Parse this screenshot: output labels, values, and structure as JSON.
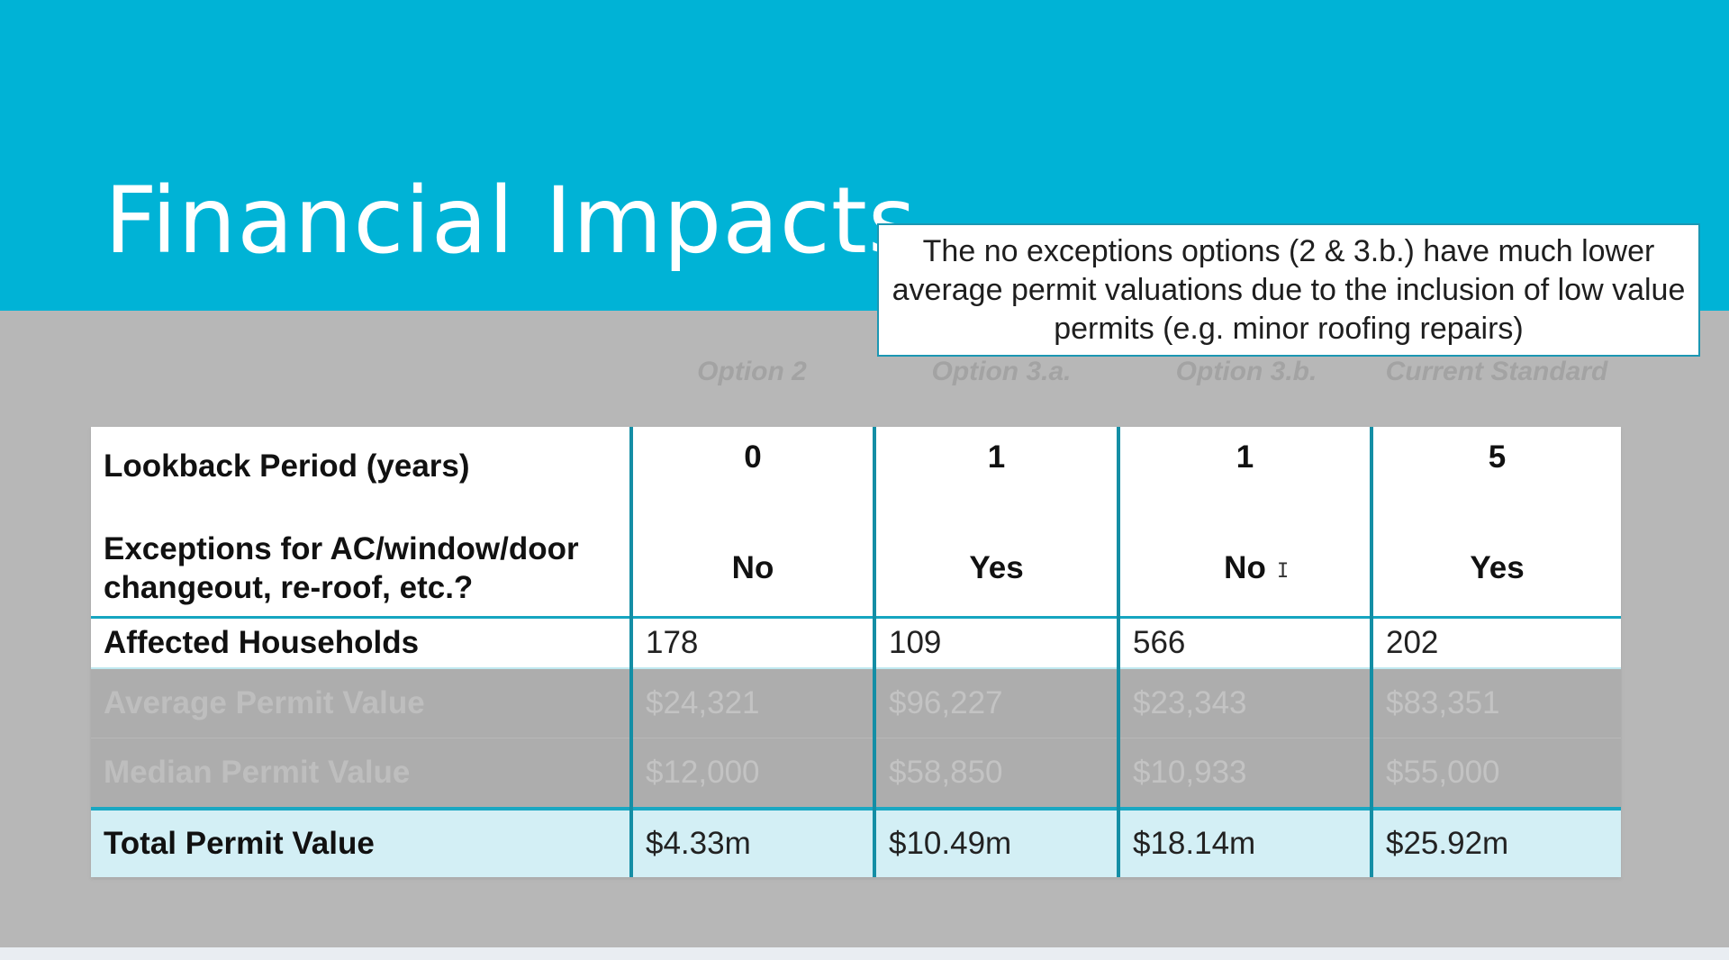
{
  "slide": {
    "title": "Financial Impacts",
    "callout": "The no exceptions options (2 & 3.b.) have much lower average permit valuations due to the inclusion of low value permits (e.g. minor roofing repairs)"
  },
  "options": [
    "Option 2",
    "Option 3.a.",
    "Option 3.b.",
    "Current Standard"
  ],
  "table": {
    "lookback": {
      "label": "Lookback Period (years)",
      "values": [
        "0",
        "1",
        "1",
        "5"
      ]
    },
    "exceptions": {
      "label": "Exceptions for AC/window/door changeout, re-roof, etc.?",
      "values": [
        "No",
        "Yes",
        "No",
        "Yes"
      ]
    },
    "affected": {
      "label": "Affected Households",
      "values": [
        "178",
        "109",
        "566",
        "202"
      ]
    },
    "average": {
      "label": "Average Permit Value",
      "values": [
        "$24,321",
        "$96,227",
        "$23,343",
        "$83,351"
      ]
    },
    "median": {
      "label": "Median Permit Value",
      "values": [
        "$12,000",
        "$58,850",
        "$10,933",
        "$55,000"
      ]
    },
    "total": {
      "label": "Total Permit Value",
      "values": [
        "$4.33m",
        "$10.49m",
        "$18.14m",
        "$25.92m"
      ]
    }
  },
  "cursor_glyph": "I"
}
